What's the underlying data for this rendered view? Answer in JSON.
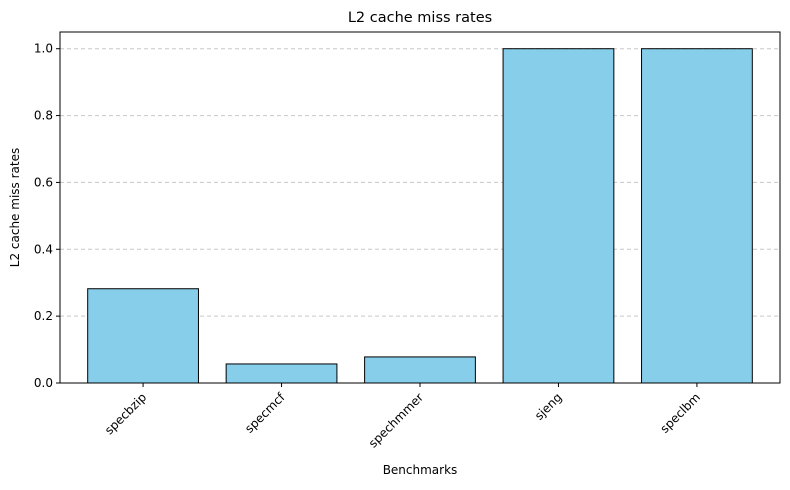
{
  "chart_data": {
    "type": "bar",
    "title": "L2 cache miss rates",
    "xlabel": "Benchmarks",
    "ylabel": "L2 cache miss rates",
    "categories": [
      "specbzip",
      "specmcf",
      "spechmmer",
      "sjeng",
      "speclbm"
    ],
    "values": [
      0.282,
      0.057,
      0.078,
      1.0,
      1.0
    ],
    "ylim": [
      0,
      1.05
    ],
    "yticks": [
      0.0,
      0.2,
      0.4,
      0.6,
      0.8,
      1.0
    ],
    "ytick_labels": [
      "0.0",
      "0.2",
      "0.4",
      "0.6",
      "0.8",
      "1.0"
    ],
    "grid": "y-dashed",
    "bar_color": "#87CEEB",
    "edge_color": "#000000",
    "xtick_rotation": "45"
  }
}
